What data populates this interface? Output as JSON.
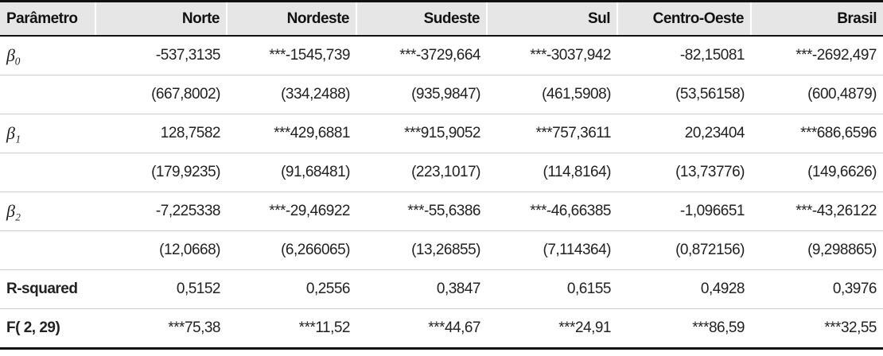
{
  "table": {
    "header": [
      "Parâmetro",
      "Norte",
      "Nordeste",
      "Sudeste",
      "Sul",
      "Centro-Oeste",
      "Brasil"
    ],
    "rows": [
      {
        "label": "β₀",
        "values": [
          "-537,3135",
          "***-1545,739",
          "***-3729,664",
          "***-3037,942",
          "-82,15081",
          "***-2692,497"
        ]
      },
      {
        "label": null,
        "values": [
          "(667,8002)",
          "(334,2488)",
          "(935,9847)",
          "(461,5908)",
          "(53,56158)",
          "(600,4879)"
        ]
      },
      {
        "label": "β₁",
        "values": [
          "128,7582",
          "***429,6881",
          "***915,9052",
          "***757,3611",
          "20,23404",
          "***686,6596"
        ]
      },
      {
        "label": null,
        "values": [
          "(179,9235)",
          "(91,68481)",
          "(223,1017)",
          "(114,8164)",
          "(13,73776)",
          "(149,6626)"
        ]
      },
      {
        "label": "β₂",
        "values": [
          "-7,225338",
          "***-29,46922",
          "***-55,6386",
          "***-46,66385",
          "-1,096651",
          "***-43,26122"
        ]
      },
      {
        "label": null,
        "values": [
          "(12,0668)",
          "(6,266065)",
          "(13,26855)",
          "(7,114364)",
          "(0,872156)",
          "(9,298865)"
        ]
      },
      {
        "label": "R-squared",
        "values": [
          "0,5152",
          "0,2556",
          "0,3847",
          "0,6155",
          "0,4928",
          "0,3976"
        ]
      },
      {
        "label": "F( 2, 29)",
        "values": [
          "***75,38",
          "***11,52",
          "***44,67",
          "***24,91",
          "***86,59",
          "***32,55"
        ]
      }
    ]
  }
}
